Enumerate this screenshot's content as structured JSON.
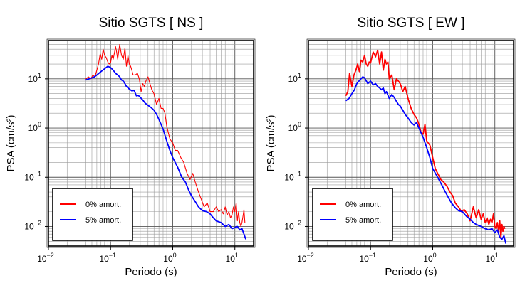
{
  "chart_data": [
    {
      "type": "line",
      "title": "Sitio SGTS [ NS ]",
      "xlabel": "Periodo (s)",
      "ylabel": "PSA (cm/s²)",
      "xscale": "log",
      "yscale": "log",
      "xlim": [
        0.01,
        20
      ],
      "ylim": [
        0.004,
        60
      ],
      "grid": true,
      "legend_position": "bottom-left",
      "xticks": [
        {
          "base": "10",
          "exp": "-2",
          "value": 0.01
        },
        {
          "base": "10",
          "exp": "-1",
          "value": 0.1
        },
        {
          "base": "10",
          "exp": "0",
          "value": 1
        },
        {
          "base": "10",
          "exp": "1",
          "value": 10
        }
      ],
      "yticks": [
        {
          "base": "10",
          "exp": "-2",
          "value": 0.01
        },
        {
          "base": "10",
          "exp": "-1",
          "value": 0.1
        },
        {
          "base": "10",
          "exp": "0",
          "value": 1
        },
        {
          "base": "10",
          "exp": "1",
          "value": 10
        }
      ],
      "series": [
        {
          "name": "0% amort.",
          "color": "#ff0000",
          "width": 1.1,
          "x": [
            0.04,
            0.044,
            0.048,
            0.052,
            0.056,
            0.06,
            0.064,
            0.068,
            0.072,
            0.076,
            0.08,
            0.085,
            0.09,
            0.095,
            0.1,
            0.105,
            0.11,
            0.115,
            0.12,
            0.125,
            0.13,
            0.14,
            0.15,
            0.16,
            0.17,
            0.18,
            0.19,
            0.2,
            0.21,
            0.22,
            0.23,
            0.25,
            0.27,
            0.29,
            0.31,
            0.33,
            0.35,
            0.37,
            0.4,
            0.43,
            0.46,
            0.5,
            0.55,
            0.6,
            0.65,
            0.7,
            0.75,
            0.8,
            0.9,
            1.0,
            1.1,
            1.2,
            1.35,
            1.5,
            1.7,
            1.9,
            2.1,
            2.3,
            2.6,
            2.9,
            3.2,
            3.6,
            4.0,
            4.5,
            5.0,
            5.5,
            6.0,
            6.5,
            7.0,
            7.5,
            8.0,
            8.5,
            9.0,
            9.5,
            10,
            10.5,
            11,
            11.5,
            12,
            12.5,
            13,
            13.5,
            14,
            14.5
          ],
          "y": [
            10,
            11,
            10,
            12,
            11,
            15,
            20,
            32,
            25,
            40,
            30,
            27,
            22,
            20,
            21,
            30,
            25,
            33,
            45,
            35,
            25,
            50,
            30,
            25,
            42,
            18,
            30,
            20,
            18,
            15,
            12,
            12,
            13,
            10,
            5.5,
            8,
            7,
            9,
            11,
            8,
            6,
            5,
            3,
            4,
            2.5,
            2.5,
            2,
            1.1,
            0.6,
            0.5,
            0.35,
            0.35,
            0.25,
            0.2,
            0.12,
            0.09,
            0.12,
            0.08,
            0.05,
            0.035,
            0.025,
            0.03,
            0.02,
            0.02,
            0.025,
            0.02,
            0.022,
            0.018,
            0.025,
            0.017,
            0.02,
            0.015,
            0.017,
            0.025,
            0.02,
            0.03,
            0.013,
            0.02,
            0.012,
            0.01,
            0.012,
            0.016,
            0.022,
            0.012
          ]
        },
        {
          "name": "5% amort.",
          "color": "#0000ff",
          "width": 1.8,
          "x": [
            0.04,
            0.045,
            0.05,
            0.055,
            0.06,
            0.065,
            0.07,
            0.075,
            0.08,
            0.09,
            0.1,
            0.11,
            0.12,
            0.13,
            0.14,
            0.15,
            0.16,
            0.17,
            0.18,
            0.2,
            0.22,
            0.24,
            0.26,
            0.28,
            0.3,
            0.33,
            0.36,
            0.4,
            0.45,
            0.5,
            0.55,
            0.6,
            0.7,
            0.8,
            0.9,
            1.0,
            1.2,
            1.4,
            1.6,
            1.8,
            2.0,
            2.3,
            2.6,
            3.0,
            3.5,
            4.0,
            4.5,
            5.0,
            6.0,
            7.0,
            8.0,
            9.0,
            10,
            11,
            12,
            13,
            14,
            15
          ],
          "y": [
            9.5,
            10,
            10.5,
            11,
            12,
            13,
            14,
            15,
            16,
            18,
            17,
            15,
            13,
            12,
            11,
            9.5,
            9,
            8,
            7,
            6.2,
            5.7,
            5.8,
            4.5,
            4.6,
            4.2,
            3.7,
            3.2,
            2.9,
            2.6,
            2.3,
            1.9,
            1.5,
            0.95,
            0.55,
            0.35,
            0.25,
            0.16,
            0.1,
            0.08,
            0.055,
            0.042,
            0.032,
            0.025,
            0.021,
            0.02,
            0.018,
            0.015,
            0.013,
            0.012,
            0.01,
            0.011,
            0.009,
            0.0095,
            0.01,
            0.0085,
            0.009,
            0.007,
            0.0055
          ]
        }
      ]
    },
    {
      "type": "line",
      "title": "Sitio SGTS [ EW ]",
      "xlabel": "Periodo (s)",
      "ylabel": "PSA (cm/s²)",
      "xscale": "log",
      "yscale": "log",
      "xlim": [
        0.01,
        20
      ],
      "ylim": [
        0.004,
        60
      ],
      "grid": true,
      "legend_position": "bottom-left",
      "xticks": [
        {
          "base": "10",
          "exp": "-2",
          "value": 0.01
        },
        {
          "base": "10",
          "exp": "-1",
          "value": 0.1
        },
        {
          "base": "10",
          "exp": "0",
          "value": 1
        },
        {
          "base": "10",
          "exp": "1",
          "value": 10
        }
      ],
      "yticks": [
        {
          "base": "10",
          "exp": "-2",
          "value": 0.01
        },
        {
          "base": "10",
          "exp": "-1",
          "value": 0.1
        },
        {
          "base": "10",
          "exp": "0",
          "value": 1
        },
        {
          "base": "10",
          "exp": "1",
          "value": 10
        }
      ],
      "series": [
        {
          "name": "0% amort.",
          "color": "#ff0000",
          "width": 1.8,
          "x": [
            0.04,
            0.043,
            0.046,
            0.05,
            0.054,
            0.058,
            0.062,
            0.066,
            0.07,
            0.075,
            0.08,
            0.085,
            0.09,
            0.095,
            0.1,
            0.11,
            0.12,
            0.13,
            0.14,
            0.15,
            0.16,
            0.17,
            0.18,
            0.19,
            0.2,
            0.22,
            0.24,
            0.26,
            0.28,
            0.3,
            0.33,
            0.36,
            0.4,
            0.45,
            0.5,
            0.55,
            0.6,
            0.65,
            0.7,
            0.75,
            0.8,
            0.9,
            1.0,
            1.1,
            1.2,
            1.35,
            1.5,
            1.7,
            1.9,
            2.1,
            2.3,
            2.6,
            2.9,
            3.2,
            3.6,
            4.0,
            4.5,
            5.0,
            5.5,
            6.0,
            6.5,
            7.0,
            7.5,
            8.0,
            8.5,
            9.0,
            9.5,
            10,
            10.5,
            11,
            11.5,
            12,
            12.5,
            13,
            13.5,
            14,
            14.5
          ],
          "y": [
            4.5,
            5.5,
            13,
            7,
            12,
            15,
            20,
            14,
            24,
            22,
            30,
            20,
            18,
            22,
            21,
            35,
            28,
            38,
            20,
            35,
            15,
            25,
            20,
            22,
            10,
            12,
            6,
            10,
            9,
            8,
            5.5,
            7,
            4,
            2.5,
            1.9,
            1.6,
            1.2,
            0.8,
            0.75,
            1.2,
            0.55,
            0.45,
            0.25,
            0.15,
            0.12,
            0.09,
            0.08,
            0.065,
            0.05,
            0.042,
            0.03,
            0.025,
            0.02,
            0.022,
            0.018,
            0.013,
            0.025,
            0.015,
            0.022,
            0.014,
            0.018,
            0.012,
            0.015,
            0.011,
            0.014,
            0.012,
            0.018,
            0.01,
            0.009,
            0.012,
            0.008,
            0.013,
            0.006,
            0.011,
            0.008,
            0.01,
            0.009
          ]
        },
        {
          "name": "5% amort.",
          "color": "#0000ff",
          "width": 1.8,
          "x": [
            0.04,
            0.045,
            0.05,
            0.055,
            0.06,
            0.065,
            0.07,
            0.075,
            0.08,
            0.09,
            0.1,
            0.11,
            0.12,
            0.13,
            0.14,
            0.15,
            0.16,
            0.17,
            0.18,
            0.2,
            0.22,
            0.24,
            0.26,
            0.28,
            0.3,
            0.33,
            0.36,
            0.4,
            0.45,
            0.5,
            0.55,
            0.6,
            0.7,
            0.8,
            0.9,
            1.0,
            1.2,
            1.4,
            1.6,
            1.8,
            2.0,
            2.3,
            2.6,
            3.0,
            3.5,
            4.0,
            4.5,
            5.0,
            6.0,
            7.0,
            8.0,
            9.0,
            10,
            11,
            12,
            13,
            14,
            15
          ],
          "y": [
            3.6,
            4,
            5,
            6,
            8,
            9,
            10,
            11,
            10.5,
            8,
            9,
            7.5,
            8,
            7,
            6.5,
            6,
            6.5,
            5,
            5.5,
            4,
            4.8,
            4.2,
            3.5,
            3,
            2.8,
            2.3,
            1.9,
            1.6,
            1.3,
            1.15,
            1.3,
            1.0,
            0.65,
            0.4,
            0.25,
            0.15,
            0.1,
            0.07,
            0.05,
            0.038,
            0.03,
            0.024,
            0.021,
            0.02,
            0.016,
            0.014,
            0.012,
            0.011,
            0.01,
            0.009,
            0.0085,
            0.009,
            0.0075,
            0.0085,
            0.006,
            0.0055,
            0.0065,
            0.0045
          ]
        }
      ]
    }
  ]
}
